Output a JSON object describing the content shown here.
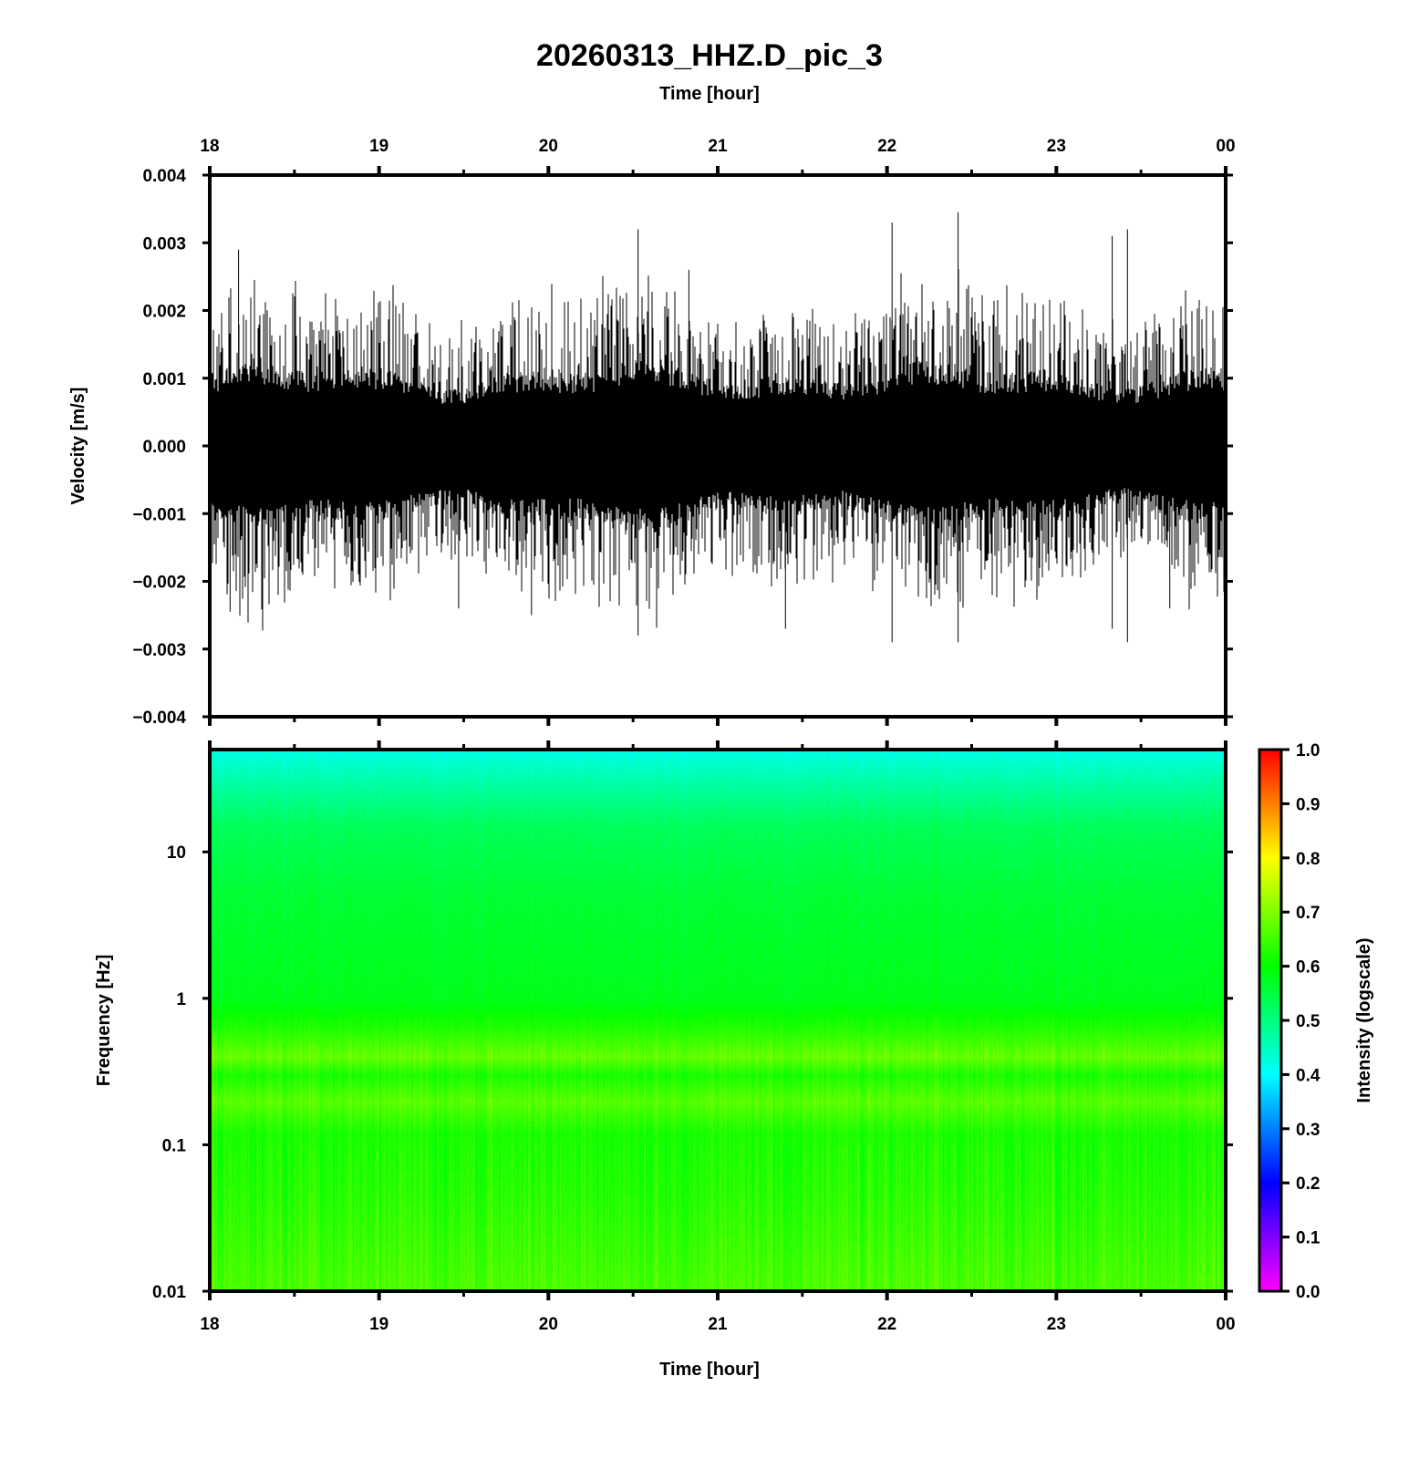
{
  "title": "20260313_HHZ.D_pic_3",
  "top_xlabel": "Time [hour]",
  "bottom_xlabel": "Time [hour]",
  "chart_data": [
    {
      "type": "line",
      "name": "waveform",
      "xlabel": "Time [hour]",
      "ylabel": "Velocity [m/s]",
      "x_ticks": [
        "18",
        "19",
        "20",
        "21",
        "22",
        "23",
        "00"
      ],
      "xlim_hours": [
        18,
        24
      ],
      "ylim": [
        -0.004,
        0.004
      ],
      "y_ticks": [
        "0.004",
        "0.003",
        "0.002",
        "0.001",
        "0.000",
        "−0.001",
        "−0.002",
        "−0.003",
        "−0.004"
      ],
      "y_tick_values": [
        0.004,
        0.003,
        0.002,
        0.001,
        0.0,
        -0.001,
        -0.002,
        -0.003,
        -0.004
      ],
      "line_color": "#000000",
      "typical_amplitude": 0.0009,
      "max_amplitude": 0.00345,
      "notable_peaks": [
        {
          "time": 18.17,
          "value": 0.0029
        },
        {
          "time": 18.12,
          "value": -0.00245
        },
        {
          "time": 19.47,
          "value": -0.0024
        },
        {
          "time": 19.9,
          "value": -0.0025
        },
        {
          "time": 20.53,
          "value": 0.0032
        },
        {
          "time": 20.53,
          "value": -0.0028
        },
        {
          "time": 20.83,
          "value": 0.0026
        },
        {
          "time": 21.4,
          "value": -0.0027
        },
        {
          "time": 22.03,
          "value": 0.0033
        },
        {
          "time": 22.03,
          "value": -0.0029
        },
        {
          "time": 22.42,
          "value": 0.00345
        },
        {
          "time": 22.42,
          "value": -0.0029
        },
        {
          "time": 23.33,
          "value": 0.0031
        },
        {
          "time": 23.33,
          "value": -0.0027
        },
        {
          "time": 23.42,
          "value": 0.0032
        },
        {
          "time": 23.42,
          "value": -0.0029
        },
        {
          "time": 23.67,
          "value": -0.0024
        }
      ]
    },
    {
      "type": "heatmap",
      "name": "spectrogram",
      "xlabel": "Time [hour]",
      "ylabel": "Frequency [Hz]",
      "x_ticks": [
        "18",
        "19",
        "20",
        "21",
        "22",
        "23",
        "00"
      ],
      "xlim_hours": [
        18,
        24
      ],
      "y_scale": "log",
      "ylim": [
        0.01,
        50
      ],
      "y_ticks": [
        "10",
        "1",
        "0.1",
        "0.01"
      ],
      "y_tick_values": [
        10,
        1,
        0.1,
        0.01
      ],
      "intensity_profile": [
        {
          "freq": 50,
          "intensity": 0.42
        },
        {
          "freq": 30,
          "intensity": 0.47
        },
        {
          "freq": 15,
          "intensity": 0.53
        },
        {
          "freq": 5,
          "intensity": 0.56
        },
        {
          "freq": 1,
          "intensity": 0.58
        },
        {
          "freq": 0.6,
          "intensity": 0.63
        },
        {
          "freq": 0.4,
          "intensity": 0.68
        },
        {
          "freq": 0.3,
          "intensity": 0.62
        },
        {
          "freq": 0.2,
          "intensity": 0.67
        },
        {
          "freq": 0.12,
          "intensity": 0.62
        },
        {
          "freq": 0.05,
          "intensity": 0.63
        },
        {
          "freq": 0.01,
          "intensity": 0.66
        }
      ],
      "colorbar": {
        "label": "Intensity (logscale)",
        "range": [
          0.0,
          1.0
        ],
        "ticks": [
          "1.0",
          "0.9",
          "0.8",
          "0.7",
          "0.6",
          "0.5",
          "0.4",
          "0.3",
          "0.2",
          "0.1",
          "0.0"
        ],
        "tick_values": [
          1.0,
          0.9,
          0.8,
          0.7,
          0.6,
          0.5,
          0.4,
          0.3,
          0.2,
          0.1,
          0.0
        ],
        "colors": [
          "#ff00ff",
          "#0000ff",
          "#00ffff",
          "#00ff00",
          "#ffff00",
          "#ff0000"
        ]
      }
    }
  ]
}
